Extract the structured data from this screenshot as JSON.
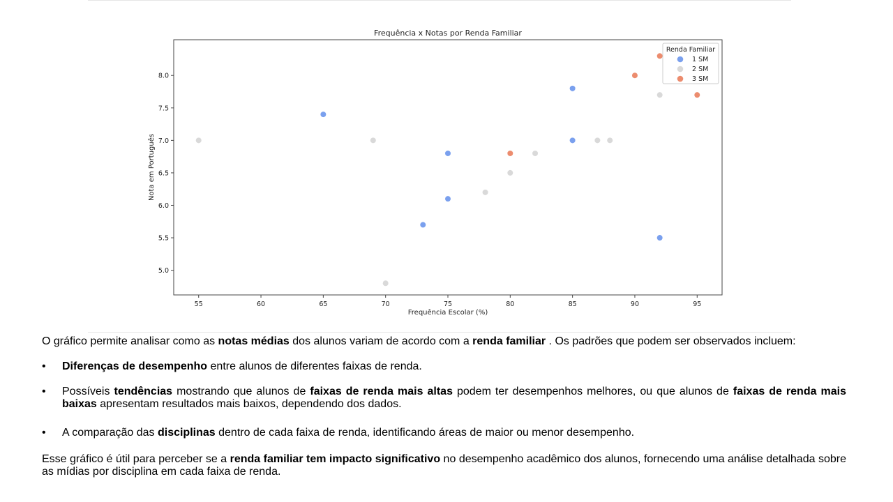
{
  "chart_data": {
    "type": "scatter",
    "title": "Frequência x Notas por Renda Familiar",
    "xlabel": "Frequência Escolar (%)",
    "ylabel": "Nota em Português",
    "xlim": [
      53,
      97
    ],
    "ylim": [
      4.62,
      8.55
    ],
    "xticks": [
      55,
      60,
      65,
      70,
      75,
      80,
      85,
      90,
      95
    ],
    "yticks": [
      5.0,
      5.5,
      6.0,
      6.5,
      7.0,
      7.5,
      8.0
    ],
    "ytick_labels": [
      "5.0",
      "5.5",
      "6.0",
      "6.5",
      "7.0",
      "7.5",
      "8.0"
    ],
    "grid": false,
    "legend": {
      "title": "Renda Familiar",
      "placement": "top-right"
    },
    "series": [
      {
        "name": "1 SM",
        "color": "#7aa0ee",
        "points": [
          [
            65,
            7.4
          ],
          [
            75,
            6.8
          ],
          [
            75,
            6.1
          ],
          [
            73,
            5.7
          ],
          [
            85,
            7.8
          ],
          [
            85,
            7.0
          ],
          [
            92,
            5.5
          ]
        ]
      },
      {
        "name": "2 SM",
        "color": "#d9d9d9",
        "points": [
          [
            55,
            7.0
          ],
          [
            69,
            7.0
          ],
          [
            70,
            4.8
          ],
          [
            78,
            6.2
          ],
          [
            80,
            6.5
          ],
          [
            82,
            6.8
          ],
          [
            87,
            7.0
          ],
          [
            88,
            7.0
          ],
          [
            92,
            7.7
          ]
        ]
      },
      {
        "name": "3 SM",
        "color": "#ec8c6e",
        "points": [
          [
            80,
            6.8
          ],
          [
            90,
            8.0
          ],
          [
            92,
            8.3
          ],
          [
            95,
            7.7
          ]
        ]
      }
    ]
  },
  "text": {
    "intro": [
      {
        "t": "O gráfico permite analisar como as ",
        "b": false
      },
      {
        "t": "notas médias",
        "b": true
      },
      {
        "t": " dos alunos variam de acordo com a ",
        "b": false
      },
      {
        "t": "renda familiar",
        "b": true
      },
      {
        "t": " . Os padrões que podem ser observados incluem:",
        "b": false
      }
    ],
    "bullet_symbol": "•",
    "bullets": [
      [
        {
          "t": "Diferenças de desempenho",
          "b": true
        },
        {
          "t": " entre alunos de diferentes faixas de renda.",
          "b": false
        }
      ],
      [
        {
          "t": "Possíveis ",
          "b": false
        },
        {
          "t": "tendências",
          "b": true
        },
        {
          "t": " mostrando que alunos de ",
          "b": false
        },
        {
          "t": "faixas de renda mais altas",
          "b": true
        },
        {
          "t": " podem ter desempenhos melhores, ou que alunos de ",
          "b": false
        },
        {
          "t": "faixas de renda mais baixas",
          "b": true
        },
        {
          "t": " apresentam resultados mais baixos, dependendo dos dados.",
          "b": false
        }
      ],
      [
        {
          "t": "A comparação das ",
          "b": false
        },
        {
          "t": "disciplinas",
          "b": true
        },
        {
          "t": " dentro de cada faixa de renda, identificando áreas de maior ou menor desempenho.",
          "b": false
        }
      ]
    ],
    "conclusion": [
      {
        "t": "Esse gráfico é útil para perceber se a ",
        "b": false
      },
      {
        "t": "renda familiar tem impacto significativo",
        "b": true
      },
      {
        "t": " no desempenho acadêmico dos alunos, fornecendo uma análise detalhada sobre as mídias por disciplina em cada faixa de renda.",
        "b": false
      }
    ]
  }
}
